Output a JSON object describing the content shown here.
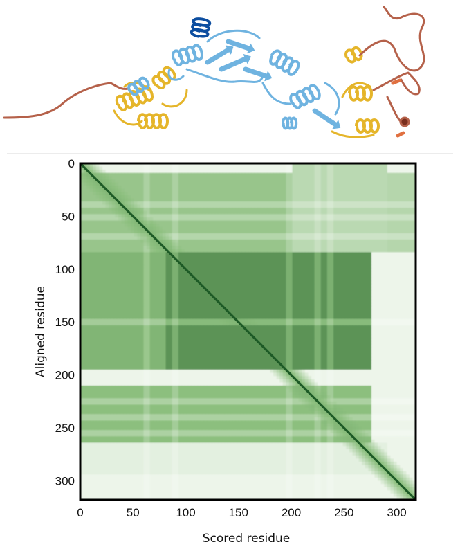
{
  "structure": {
    "colors": {
      "very_high": "#0d4ea0",
      "confident": "#6fb3e0",
      "low": "#e5b52a",
      "very_low": "#b5614a"
    }
  },
  "chart_data": {
    "type": "heatmap",
    "title": "",
    "xlabel": "Scored residue",
    "ylabel": "Aligned residue",
    "xlim": [
      0,
      318
    ],
    "ylim": [
      0,
      318
    ],
    "y_inverted": true,
    "x_ticks": [
      0,
      50,
      100,
      150,
      200,
      250,
      300
    ],
    "y_ticks": [
      0,
      50,
      100,
      150,
      200,
      250,
      300
    ],
    "x_tick_labels": [
      "0",
      "50",
      "100",
      "150",
      "200",
      "250",
      "300"
    ],
    "y_tick_labels": [
      "0",
      "50",
      "100",
      "150",
      "200",
      "250",
      "300"
    ],
    "colormap": {
      "low": "#ffffff",
      "mid": "#8cbf7e",
      "high": "#1d5a26"
    },
    "value_scale": "0 = light (low error), 1 = dark green (high confidence)",
    "regions": [
      {
        "rows": [
          0,
          318
        ],
        "cols": [
          0,
          318
        ],
        "value": 0.08
      },
      {
        "rows": [
          10,
          85
        ],
        "cols": [
          0,
          320
        ],
        "value": 0.32
      },
      {
        "rows": [
          10,
          200
        ],
        "cols": [
          0,
          275
        ],
        "value": 0.45
      },
      {
        "rows": [
          85,
          195
        ],
        "cols": [
          80,
          275
        ],
        "value": 0.72
      },
      {
        "rows": [
          85,
          195
        ],
        "cols": [
          0,
          80
        ],
        "value": 0.55
      },
      {
        "rows": [
          195,
          210
        ],
        "cols": [
          0,
          320
        ],
        "value": 0.08
      },
      {
        "rows": [
          210,
          265
        ],
        "cols": [
          0,
          275
        ],
        "value": 0.5
      },
      {
        "rows": [
          265,
          295
        ],
        "cols": [
          0,
          290
        ],
        "value": 0.12
      },
      {
        "rows": [
          0,
          85
        ],
        "cols": [
          200,
          290
        ],
        "value": 0.3
      }
    ],
    "light_bands_rows": [
      40,
      52,
      70,
      150,
      225,
      240,
      255
    ],
    "light_bands_cols": [
      62,
      90,
      198,
      225,
      238
    ],
    "diagonal": {
      "from": 0,
      "to": 318,
      "value": 1.0
    }
  }
}
